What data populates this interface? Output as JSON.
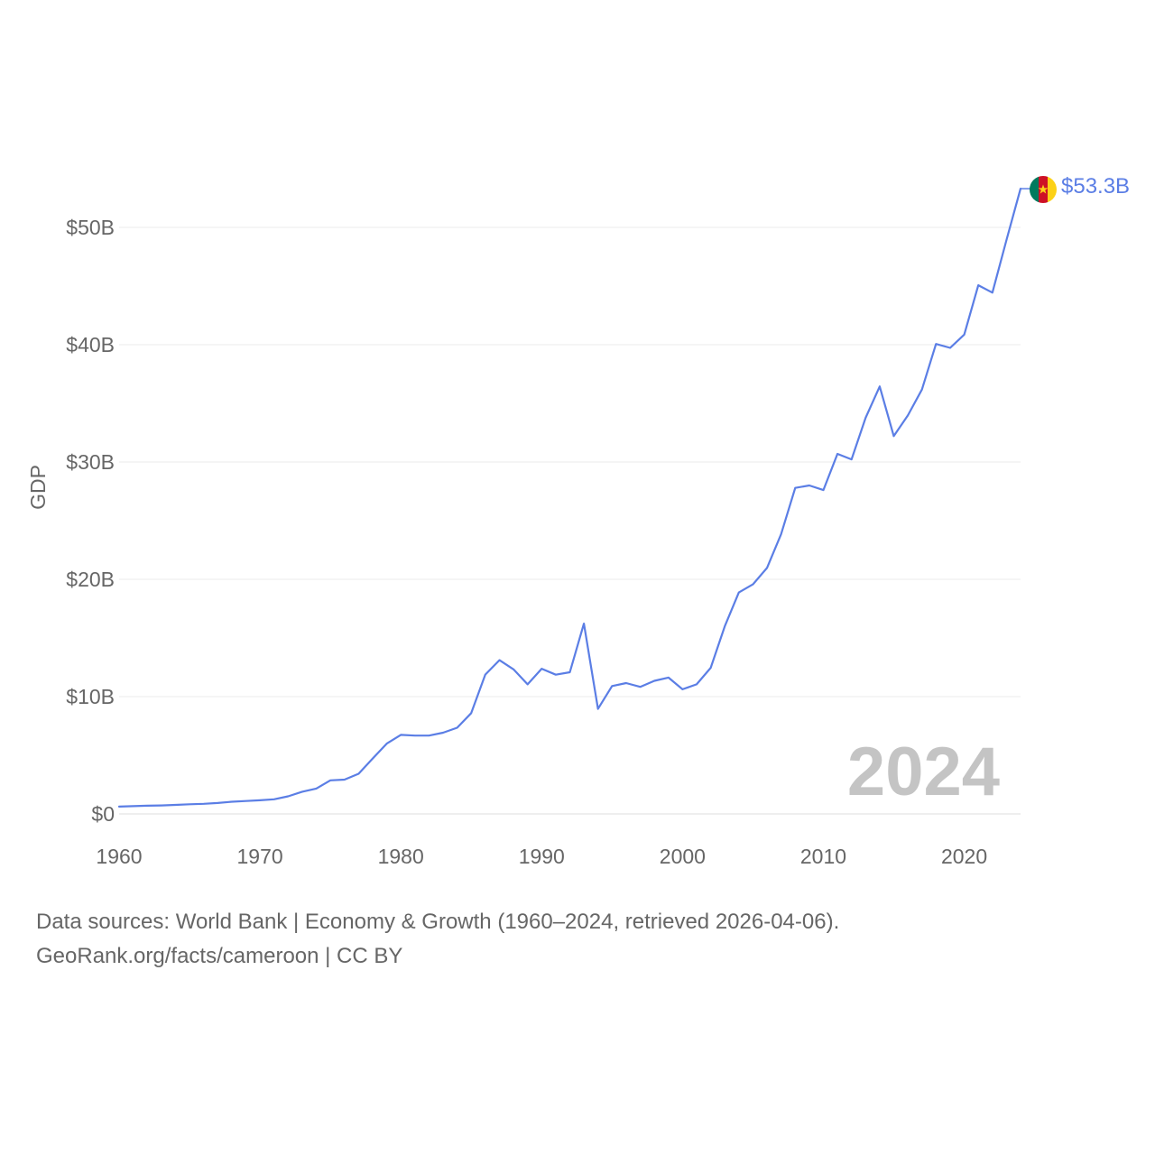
{
  "chart_data": {
    "type": "line",
    "title": "",
    "xlabel": "",
    "ylabel": "GDP",
    "xlim": [
      1960,
      2024
    ],
    "ylim": [
      0,
      53.3
    ],
    "x_ticks": [
      1960,
      1970,
      1980,
      1990,
      2000,
      2010,
      2020
    ],
    "y_ticks": [
      0,
      10,
      20,
      30,
      40,
      50
    ],
    "y_tick_labels": [
      "$0",
      "$10B",
      "$20B",
      "$30B",
      "$40B",
      "$50B"
    ],
    "units": "billion USD",
    "grid": true,
    "current_year_label": "2024",
    "end_value_label": "$53.3B",
    "series": [
      {
        "name": "Cameroon GDP",
        "color": "#5b7ee5",
        "x": [
          1960,
          1961,
          1962,
          1963,
          1964,
          1965,
          1966,
          1967,
          1968,
          1969,
          1970,
          1971,
          1972,
          1973,
          1974,
          1975,
          1976,
          1977,
          1978,
          1979,
          1980,
          1981,
          1982,
          1983,
          1984,
          1985,
          1986,
          1987,
          1988,
          1989,
          1990,
          1991,
          1992,
          1993,
          1994,
          1995,
          1996,
          1997,
          1998,
          1999,
          2000,
          2001,
          2002,
          2003,
          2004,
          2005,
          2006,
          2007,
          2008,
          2009,
          2010,
          2011,
          2012,
          2013,
          2014,
          2015,
          2016,
          2017,
          2018,
          2019,
          2020,
          2021,
          2022,
          2023,
          2024
        ],
        "values": [
          0.62,
          0.66,
          0.7,
          0.72,
          0.77,
          0.82,
          0.86,
          0.93,
          1.04,
          1.1,
          1.16,
          1.25,
          1.5,
          1.89,
          2.16,
          2.86,
          2.92,
          3.42,
          4.72,
          5.99,
          6.74,
          6.68,
          6.68,
          6.92,
          7.35,
          8.59,
          11.88,
          13.11,
          12.32,
          11.05,
          12.38,
          11.87,
          12.08,
          16.22,
          8.95,
          10.9,
          11.15,
          10.83,
          11.35,
          11.62,
          10.62,
          11.05,
          12.45,
          15.99,
          18.88,
          19.57,
          20.97,
          23.84,
          27.79,
          28.0,
          27.61,
          30.69,
          30.22,
          33.77,
          36.44,
          32.21,
          33.97,
          36.18,
          40.06,
          39.73,
          40.86,
          45.07,
          44.44,
          48.92,
          53.3
        ]
      }
    ]
  },
  "flag": {
    "country": "Cameroon",
    "colors": [
      "#007a5e",
      "#ce1126",
      "#fcd116"
    ]
  },
  "footer": {
    "line1": "Data sources: World Bank | Economy & Growth (1960–2024, retrieved 2026-04-06).",
    "line2": "GeoRank.org/facts/cameroon | CC BY"
  }
}
